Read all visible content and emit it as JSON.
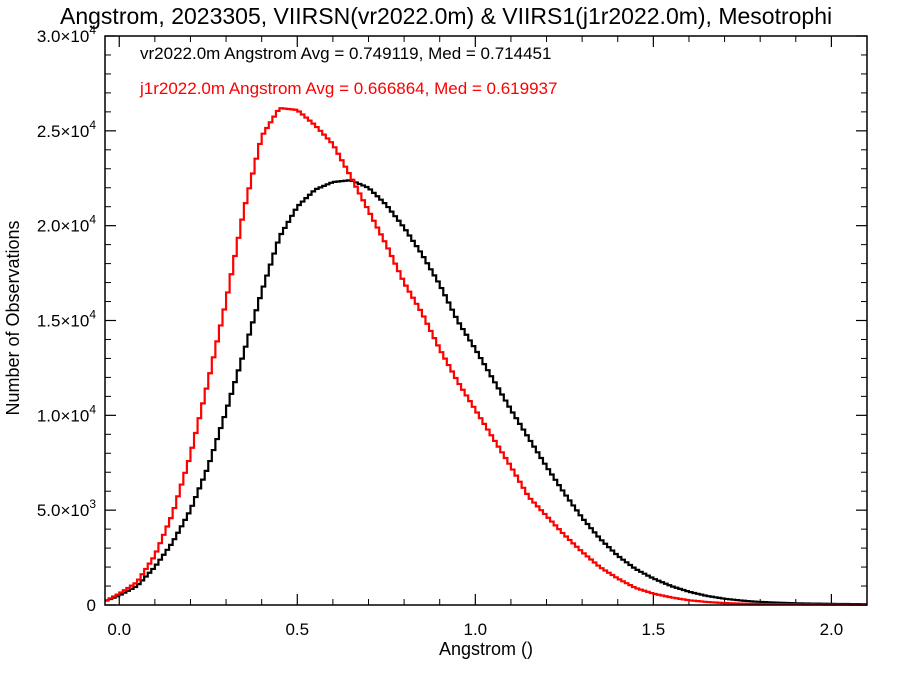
{
  "chart_data": {
    "type": "line",
    "title": "Angstrom, 2023305, VIIRSN(vr2022.0m) & VIIRS1(j1r2022.0m), Mesotrophi",
    "xlabel": "Angstrom ()",
    "ylabel": "Number of Observations",
    "xlim": [
      -0.04,
      2.1
    ],
    "ylim": [
      0,
      30000
    ],
    "x_ticks": [
      {
        "value": 0.0,
        "label": "0.0"
      },
      {
        "value": 0.5,
        "label": "0.5"
      },
      {
        "value": 1.0,
        "label": "1.0"
      },
      {
        "value": 1.5,
        "label": "1.5"
      },
      {
        "value": 2.0,
        "label": "2.0"
      }
    ],
    "y_ticks": [
      {
        "value": 0,
        "mant": "0",
        "exp": ""
      },
      {
        "value": 5000,
        "mant": "5.0×10",
        "exp": "3"
      },
      {
        "value": 10000,
        "mant": "1.0×10",
        "exp": "4"
      },
      {
        "value": 15000,
        "mant": "1.5×10",
        "exp": "4"
      },
      {
        "value": 20000,
        "mant": "2.0×10",
        "exp": "4"
      },
      {
        "value": 25000,
        "mant": "2.5×10",
        "exp": "4"
      },
      {
        "value": 30000,
        "mant": "3.0×10",
        "exp": "4"
      }
    ],
    "grid": false,
    "step": true,
    "annotations": [
      {
        "text": "vr2022.0m Angstrom Avg = 0.749119, Med = 0.714451",
        "color": "#000000"
      },
      {
        "text": "j1r2022.0m Angstrom Avg = 0.666864, Med = 0.619937",
        "color": "#ff0000"
      }
    ],
    "series": [
      {
        "color": "#000000",
        "x": [
          -0.04,
          0.0,
          0.05,
          0.1,
          0.15,
          0.2,
          0.25,
          0.3,
          0.35,
          0.4,
          0.45,
          0.5,
          0.55,
          0.6,
          0.65,
          0.7,
          0.75,
          0.8,
          0.85,
          0.9,
          0.95,
          1.0,
          1.05,
          1.1,
          1.15,
          1.2,
          1.25,
          1.3,
          1.35,
          1.4,
          1.45,
          1.5,
          1.55,
          1.6,
          1.65,
          1.7,
          1.75,
          1.8,
          1.9,
          2.0,
          2.1
        ],
        "values": [
          200,
          500,
          1000,
          2000,
          3300,
          5000,
          7300,
          10200,
          13300,
          16500,
          19400,
          21000,
          21900,
          22300,
          22400,
          22000,
          21100,
          19900,
          18500,
          16900,
          15000,
          13500,
          11900,
          10300,
          8800,
          7300,
          5900,
          4600,
          3500,
          2600,
          1900,
          1400,
          1000,
          700,
          480,
          330,
          230,
          160,
          90,
          60,
          40
        ]
      },
      {
        "color": "#ff0000",
        "x": [
          -0.04,
          0.0,
          0.05,
          0.1,
          0.15,
          0.2,
          0.25,
          0.3,
          0.35,
          0.4,
          0.45,
          0.5,
          0.55,
          0.6,
          0.65,
          0.7,
          0.75,
          0.8,
          0.85,
          0.9,
          0.95,
          1.0,
          1.05,
          1.1,
          1.15,
          1.2,
          1.25,
          1.3,
          1.35,
          1.4,
          1.45,
          1.5,
          1.55,
          1.6,
          1.65,
          1.7,
          1.75,
          1.8,
          1.9,
          2.0,
          2.1
        ],
        "values": [
          200,
          600,
          1200,
          2600,
          4800,
          7900,
          11800,
          16000,
          20800,
          24700,
          26200,
          26100,
          25300,
          24300,
          22600,
          20800,
          19000,
          17000,
          15400,
          13500,
          11800,
          10300,
          8800,
          7300,
          5700,
          4700,
          3700,
          2800,
          2000,
          1400,
          900,
          600,
          400,
          250,
          160,
          100,
          70,
          50,
          30,
          20,
          10
        ]
      }
    ]
  }
}
